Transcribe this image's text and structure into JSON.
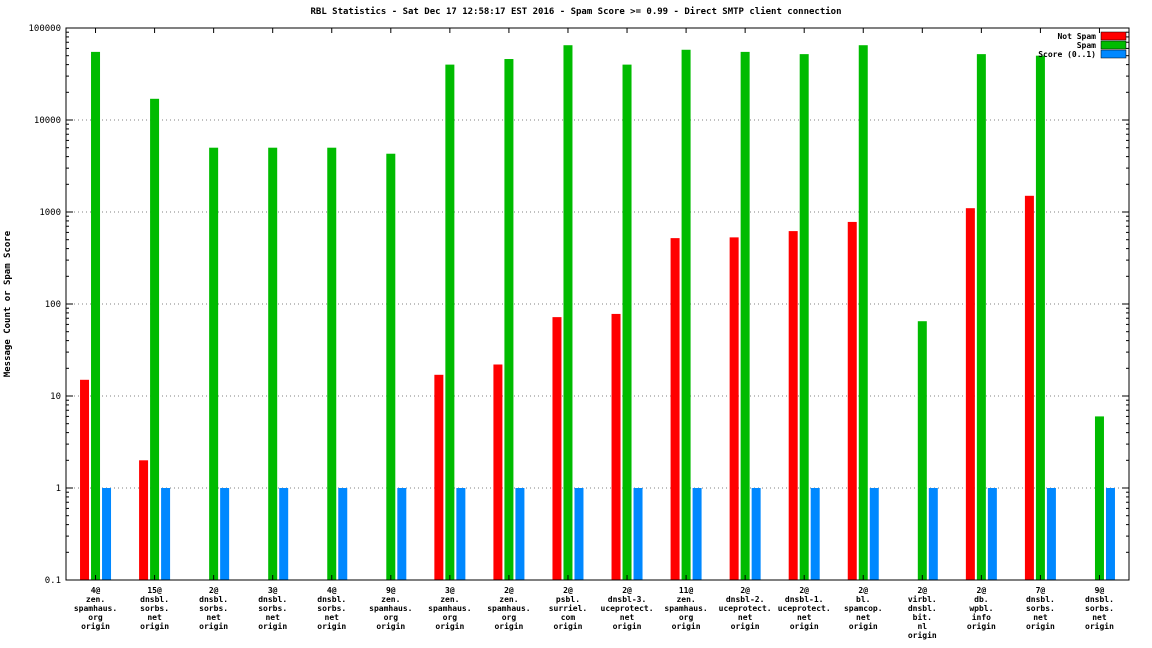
{
  "chart_data": {
    "type": "bar",
    "title": "RBL Statistics - Sat Dec 17 12:58:17 EST 2016 - Spam Score >= 0.99 - Direct SMTP client connection",
    "ylabel": "Message Count or Spam Score",
    "xlabel": "",
    "y_scale": "log10",
    "ylim": [
      0.1,
      100000
    ],
    "grid": "horizontal-dotted",
    "legend_position": "top-right-inside",
    "yticks": [
      {
        "label": "100000",
        "value": 100000
      },
      {
        "label": "10000",
        "value": 10000
      },
      {
        "label": "1000",
        "value": 1000
      },
      {
        "label": "100",
        "value": 100
      },
      {
        "label": "10",
        "value": 10
      },
      {
        "label": "1",
        "value": 1
      },
      {
        "label": "0.1",
        "value": 0.1
      }
    ],
    "categories": [
      [
        "4@",
        "zen.",
        "spamhaus.",
        "org",
        "origin"
      ],
      [
        "15@",
        "dnsbl.",
        "sorbs.",
        "net",
        "origin"
      ],
      [
        "2@",
        "dnsbl.",
        "sorbs.",
        "net",
        "origin"
      ],
      [
        "3@",
        "dnsbl.",
        "sorbs.",
        "net",
        "origin"
      ],
      [
        "4@",
        "dnsbl.",
        "sorbs.",
        "net",
        "origin"
      ],
      [
        "9@",
        "zen.",
        "spamhaus.",
        "org",
        "origin"
      ],
      [
        "3@",
        "zen.",
        "spamhaus.",
        "org",
        "origin"
      ],
      [
        "2@",
        "zen.",
        "spamhaus.",
        "org",
        "origin"
      ],
      [
        "2@",
        "psbl.",
        "surriel.",
        "com",
        "origin"
      ],
      [
        "2@",
        "dnsbl-3.",
        "uceprotect.",
        "net",
        "origin"
      ],
      [
        "11@",
        "zen.",
        "spamhaus.",
        "org",
        "origin"
      ],
      [
        "2@",
        "dnsbl-2.",
        "uceprotect.",
        "net",
        "origin"
      ],
      [
        "2@",
        "dnsbl-1.",
        "uceprotect.",
        "net",
        "origin"
      ],
      [
        "2@",
        "bl.",
        "spamcop.",
        "net",
        "origin"
      ],
      [
        "2@",
        "virbl.",
        "dnsbl.",
        "bit.",
        "nl",
        "origin"
      ],
      [
        "2@",
        "db.",
        "wpbl.",
        "info",
        "origin"
      ],
      [
        "7@",
        "dnsbl.",
        "sorbs.",
        "net",
        "origin"
      ],
      [
        "9@",
        "dnsbl.",
        "sorbs.",
        "net",
        "origin"
      ]
    ],
    "series": [
      {
        "name": "Not Spam",
        "color": "#ff0000",
        "values": [
          15,
          2,
          0,
          0,
          0,
          0,
          17,
          22,
          72,
          78,
          520,
          530,
          620,
          780,
          0,
          1100,
          1500,
          0
        ]
      },
      {
        "name": "Spam",
        "color": "#00bb00",
        "values": [
          55000,
          17000,
          5000,
          5000,
          5000,
          4300,
          40000,
          46000,
          65000,
          40000,
          58000,
          55000,
          52000,
          65000,
          65,
          52000,
          50000,
          6
        ]
      },
      {
        "name": "Score (0..1)",
        "color": "#0088ff",
        "values": [
          1,
          1,
          1,
          1,
          1,
          1,
          1,
          1,
          1,
          1,
          1,
          1,
          1,
          1,
          1,
          1,
          1,
          1
        ]
      }
    ]
  },
  "colors": {
    "plot_border": "#000000",
    "grid": "#808080",
    "background": "#ffffff"
  }
}
